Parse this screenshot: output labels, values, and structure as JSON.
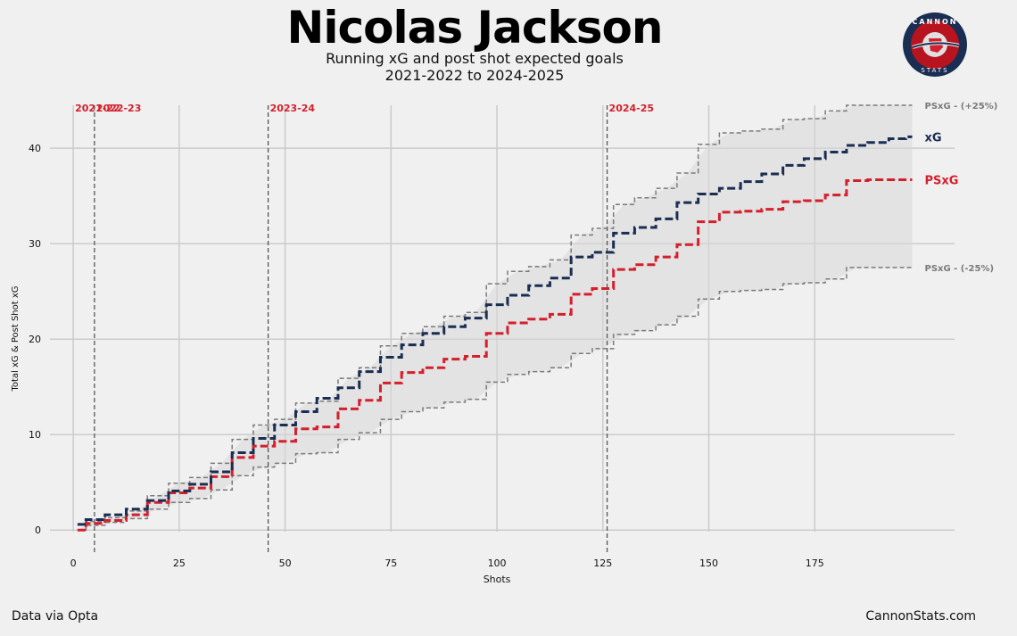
{
  "header": {
    "title": "Nicolas Jackson",
    "subtitle_line1": "Running xG and post shot expected goals",
    "subtitle_line2": "2021-2022 to 2024-2025"
  },
  "logo": {
    "text_top": "CANNON",
    "text_bottom": "STATS"
  },
  "footer": {
    "source": "Data via Opta",
    "site": "CannonStats.com"
  },
  "colors": {
    "xg": "#1a2d52",
    "psxg": "#d41f2c",
    "band": "#7a7a7a",
    "season": "#d41f2c",
    "background": "#f0f0f0"
  },
  "chart_data": {
    "type": "line",
    "title": "Nicolas Jackson",
    "xlabel": "Shots",
    "ylabel": "Total xG & Post Shot xG",
    "xlim": [
      -5.5,
      208
    ],
    "ylim": [
      -2.5,
      44.5
    ],
    "xticks": [
      0,
      25,
      50,
      75,
      100,
      125,
      150,
      175
    ],
    "yticks": [
      0,
      10,
      20,
      30,
      40
    ],
    "grid": true,
    "total_shots": 198,
    "seasons": [
      {
        "label": "2021-22",
        "shot": 0
      },
      {
        "label": "2022-23",
        "shot": 5
      },
      {
        "label": "2023-24",
        "shot": 46
      },
      {
        "label": "2024-25",
        "shot": 126
      }
    ],
    "series": [
      {
        "name": "xG",
        "label": "xG",
        "style": "dashed",
        "points": [
          [
            1,
            0.6
          ],
          [
            5,
            1.1
          ],
          [
            10,
            1.6
          ],
          [
            15,
            2.2
          ],
          [
            20,
            3.1
          ],
          [
            25,
            4.1
          ],
          [
            30,
            4.8
          ],
          [
            35,
            6.1
          ],
          [
            40,
            8.1
          ],
          [
            45,
            9.6
          ],
          [
            50,
            11.0
          ],
          [
            55,
            12.4
          ],
          [
            60,
            13.8
          ],
          [
            65,
            14.9
          ],
          [
            70,
            16.6
          ],
          [
            75,
            18.1
          ],
          [
            80,
            19.4
          ],
          [
            85,
            20.6
          ],
          [
            90,
            21.3
          ],
          [
            95,
            22.2
          ],
          [
            100,
            23.6
          ],
          [
            105,
            24.6
          ],
          [
            110,
            25.6
          ],
          [
            115,
            26.4
          ],
          [
            120,
            28.6
          ],
          [
            125,
            29.1
          ],
          [
            130,
            31.1
          ],
          [
            135,
            31.7
          ],
          [
            140,
            32.6
          ],
          [
            145,
            34.3
          ],
          [
            150,
            35.2
          ],
          [
            155,
            35.8
          ],
          [
            160,
            36.5
          ],
          [
            165,
            37.3
          ],
          [
            170,
            38.2
          ],
          [
            175,
            38.9
          ],
          [
            180,
            39.6
          ],
          [
            185,
            40.3
          ],
          [
            190,
            40.6
          ],
          [
            195,
            41.0
          ],
          [
            198,
            41.2
          ]
        ]
      },
      {
        "name": "PSxG",
        "label": "PSxG",
        "style": "dashed",
        "points": [
          [
            1,
            0.0
          ],
          [
            5,
            0.7
          ],
          [
            10,
            1.0
          ],
          [
            15,
            1.6
          ],
          [
            20,
            2.9
          ],
          [
            25,
            3.9
          ],
          [
            30,
            4.4
          ],
          [
            35,
            5.6
          ],
          [
            40,
            7.6
          ],
          [
            45,
            8.8
          ],
          [
            50,
            9.3
          ],
          [
            55,
            10.6
          ],
          [
            60,
            10.8
          ],
          [
            65,
            12.7
          ],
          [
            70,
            13.6
          ],
          [
            75,
            15.4
          ],
          [
            80,
            16.5
          ],
          [
            85,
            17.0
          ],
          [
            90,
            17.9
          ],
          [
            95,
            18.2
          ],
          [
            100,
            20.6
          ],
          [
            105,
            21.7
          ],
          [
            110,
            22.1
          ],
          [
            115,
            22.6
          ],
          [
            120,
            24.7
          ],
          [
            125,
            25.3
          ],
          [
            130,
            27.3
          ],
          [
            135,
            27.8
          ],
          [
            140,
            28.6
          ],
          [
            145,
            29.9
          ],
          [
            150,
            32.3
          ],
          [
            155,
            33.3
          ],
          [
            160,
            33.4
          ],
          [
            165,
            33.6
          ],
          [
            170,
            34.4
          ],
          [
            175,
            34.5
          ],
          [
            180,
            35.1
          ],
          [
            185,
            36.6
          ],
          [
            190,
            36.7
          ],
          [
            195,
            36.7
          ],
          [
            198,
            36.7
          ]
        ]
      },
      {
        "name": "PSxG upper (+25%)",
        "label": "PSxG - (+25%)",
        "style": "dashed-band",
        "points": [
          [
            1,
            0.0
          ],
          [
            5,
            0.9
          ],
          [
            10,
            1.3
          ],
          [
            15,
            2.0
          ],
          [
            20,
            3.6
          ],
          [
            25,
            4.9
          ],
          [
            30,
            5.5
          ],
          [
            35,
            7.0
          ],
          [
            40,
            9.5
          ],
          [
            45,
            11.0
          ],
          [
            50,
            11.6
          ],
          [
            55,
            13.3
          ],
          [
            60,
            13.5
          ],
          [
            65,
            15.9
          ],
          [
            70,
            17.0
          ],
          [
            75,
            19.3
          ],
          [
            80,
            20.6
          ],
          [
            85,
            21.3
          ],
          [
            90,
            22.4
          ],
          [
            95,
            22.8
          ],
          [
            100,
            25.8
          ],
          [
            105,
            27.1
          ],
          [
            110,
            27.6
          ],
          [
            115,
            28.3
          ],
          [
            120,
            30.9
          ],
          [
            125,
            31.6
          ],
          [
            130,
            34.1
          ],
          [
            135,
            34.8
          ],
          [
            140,
            35.8
          ],
          [
            145,
            37.4
          ],
          [
            150,
            40.4
          ],
          [
            155,
            41.6
          ],
          [
            160,
            41.8
          ],
          [
            165,
            42.0
          ],
          [
            170,
            43.0
          ],
          [
            175,
            43.1
          ],
          [
            180,
            43.9
          ],
          [
            185,
            45.8
          ],
          [
            190,
            45.9
          ],
          [
            195,
            45.9
          ],
          [
            198,
            45.9
          ]
        ]
      },
      {
        "name": "PSxG lower (-25%)",
        "label": "PSxG - (-25%)",
        "style": "dashed-band",
        "points": [
          [
            1,
            0.0
          ],
          [
            5,
            0.5
          ],
          [
            10,
            0.8
          ],
          [
            15,
            1.2
          ],
          [
            20,
            2.2
          ],
          [
            25,
            2.9
          ],
          [
            30,
            3.3
          ],
          [
            35,
            4.2
          ],
          [
            40,
            5.7
          ],
          [
            45,
            6.6
          ],
          [
            50,
            7.0
          ],
          [
            55,
            8.0
          ],
          [
            60,
            8.1
          ],
          [
            65,
            9.5
          ],
          [
            70,
            10.2
          ],
          [
            75,
            11.6
          ],
          [
            80,
            12.4
          ],
          [
            85,
            12.8
          ],
          [
            90,
            13.4
          ],
          [
            95,
            13.7
          ],
          [
            100,
            15.5
          ],
          [
            105,
            16.3
          ],
          [
            110,
            16.6
          ],
          [
            115,
            17.0
          ],
          [
            120,
            18.5
          ],
          [
            125,
            19.0
          ],
          [
            130,
            20.5
          ],
          [
            135,
            20.9
          ],
          [
            140,
            21.5
          ],
          [
            145,
            22.4
          ],
          [
            150,
            24.2
          ],
          [
            155,
            25.0
          ],
          [
            160,
            25.1
          ],
          [
            165,
            25.2
          ],
          [
            170,
            25.8
          ],
          [
            175,
            25.9
          ],
          [
            180,
            26.3
          ],
          [
            185,
            27.5
          ],
          [
            190,
            27.5
          ],
          [
            195,
            27.5
          ],
          [
            198,
            27.5
          ]
        ]
      }
    ]
  }
}
